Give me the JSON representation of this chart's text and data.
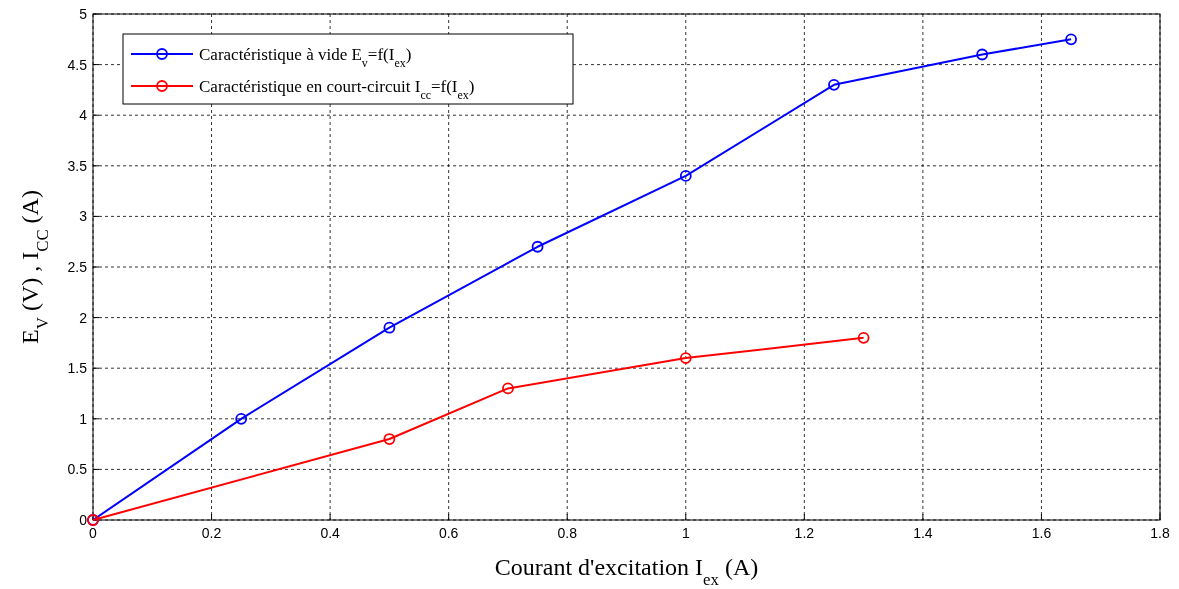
{
  "chart_data": {
    "type": "line",
    "xlabel": "Courant d'excitation I$_{ex}$ (A)",
    "ylabel": "E$_{V}$ (V) , I$_{CC}$ (A)",
    "xlim": [
      0,
      1.8
    ],
    "xticks": [
      0,
      0.2,
      0.4,
      0.6,
      0.8,
      1,
      1.2,
      1.4,
      1.6,
      1.8
    ],
    "ylim": [
      0,
      5
    ],
    "yticks": [
      0,
      0.5,
      1,
      1.5,
      2,
      2.5,
      3,
      3.5,
      4,
      4.5,
      5
    ],
    "grid": true,
    "legend": "top left",
    "marker": "circle",
    "line_style": "solid",
    "series": [
      {
        "name": "Caractéristique à vide E$_{v}$=f(I$_{ex}$)",
        "color": "#0000ff",
        "x": [
          0,
          0.25,
          0.5,
          0.75,
          1,
          1.25,
          1.5,
          1.65
        ],
        "values": [
          0,
          1,
          1.9,
          2.7,
          3.4,
          4.3,
          4.6,
          4.75
        ]
      },
      {
        "name": "Caractéristique en court-circuit I$_{cc}$=f(I$_{ex}$)",
        "color": "#ff0000",
        "x": [
          0,
          0.5,
          0.7,
          1,
          1.3
        ],
        "values": [
          0,
          0.8,
          1.3,
          1.6,
          1.8
        ]
      }
    ]
  }
}
